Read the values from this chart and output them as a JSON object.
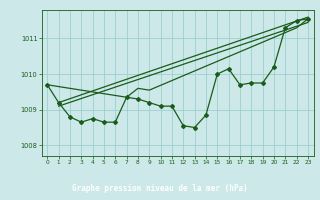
{
  "title": "Graphe pression niveau de la mer (hPa)",
  "bg_color": "#cce8e8",
  "plot_bg_color": "#cce8e8",
  "label_bg_color": "#2d6b2d",
  "label_text_color": "#ffffff",
  "line_color": "#1a5c1a",
  "grid_color": "#9ecece",
  "xlim": [
    -0.5,
    23.5
  ],
  "ylim": [
    1007.7,
    1011.8
  ],
  "yticks": [
    1008,
    1009,
    1010,
    1011
  ],
  "xticks": [
    0,
    1,
    2,
    3,
    4,
    5,
    6,
    7,
    8,
    9,
    10,
    11,
    12,
    13,
    14,
    15,
    16,
    17,
    18,
    19,
    20,
    21,
    22,
    23
  ],
  "series1_y": [
    1009.7,
    1009.2,
    1008.8,
    1008.65,
    1008.75,
    1008.65,
    1008.65,
    1009.35,
    1009.3,
    1009.2,
    1009.1,
    1009.1,
    1008.55,
    1008.5,
    1008.85,
    1010.0,
    1010.15,
    1009.7,
    1009.75,
    1009.75,
    1010.2,
    1011.3,
    1011.5,
    1011.55
  ],
  "trend1_x": [
    1,
    23
  ],
  "trend1_y": [
    1009.1,
    1011.45
  ],
  "trend2_x": [
    1,
    23
  ],
  "trend2_y": [
    1009.2,
    1011.6
  ],
  "trend3_x": [
    0,
    7,
    8,
    9,
    22,
    23
  ],
  "trend3_y": [
    1009.7,
    1009.35,
    1009.6,
    1009.55,
    1011.3,
    1011.55
  ]
}
